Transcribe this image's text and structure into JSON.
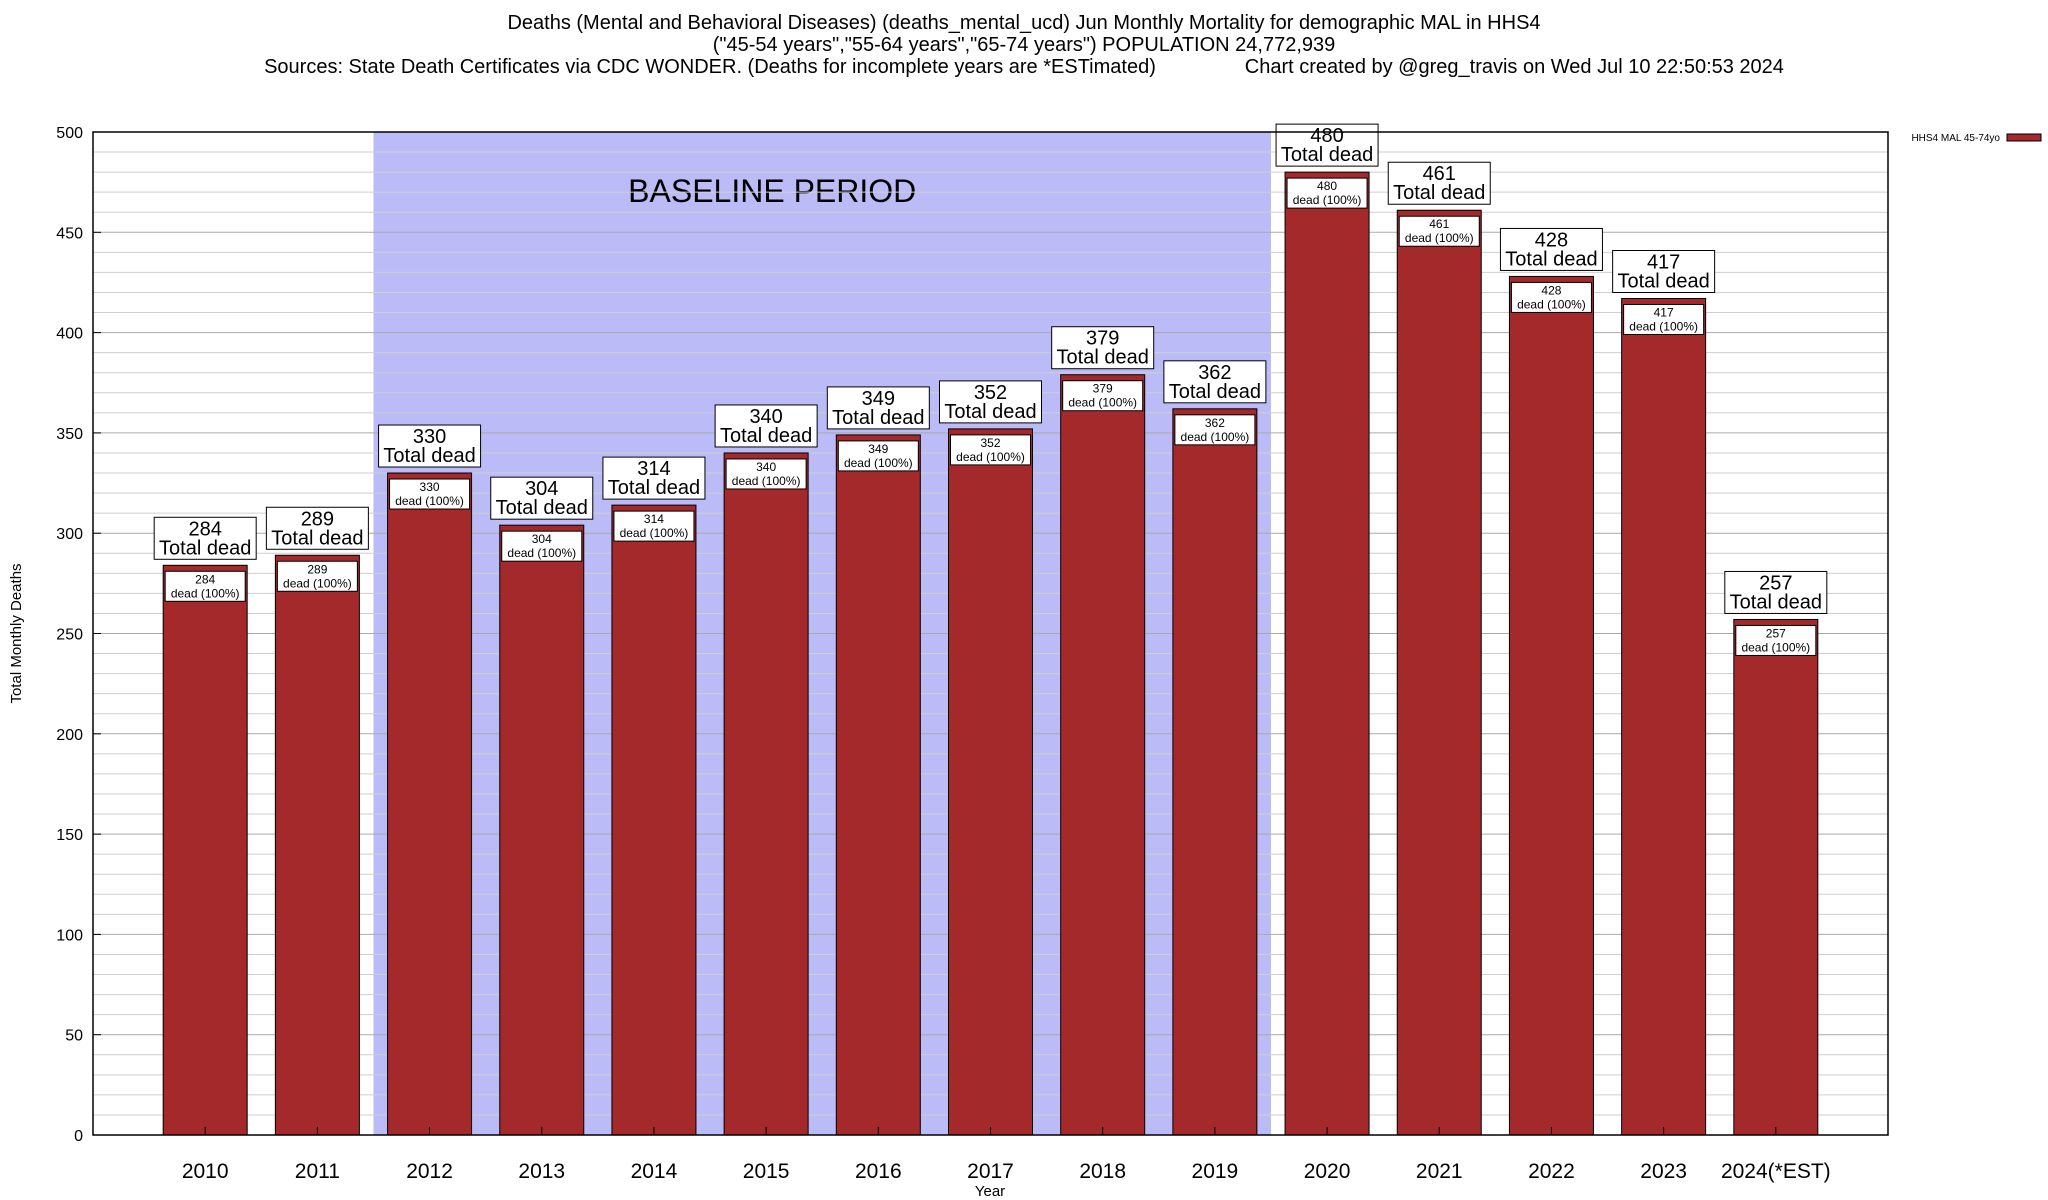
{
  "header": {
    "title_line1": "Deaths (Mental and Behavioral Diseases) (deaths_mental_ucd) Jun Monthly Mortality for demographic MAL in HHS4",
    "title_line2": "(\"45-54 years\",\"55-64 years\",\"65-74 years\") POPULATION 24,772,939",
    "title_line3": "Sources: State Death Certificates via CDC WONDER. (Deaths for incomplete years are *ESTimated)                Chart created by @greg_travis on Wed Jul 10 22:50:53 2024"
  },
  "chart_data": {
    "type": "bar",
    "xlabel": "Year",
    "ylabel": "Total Monthly Deaths",
    "ylim": [
      0,
      500
    ],
    "yticks": [
      0,
      50,
      100,
      150,
      200,
      250,
      300,
      350,
      400,
      450,
      500
    ],
    "grid": true,
    "legend_position": "top-right",
    "categories": [
      "2010",
      "2011",
      "2012",
      "2013",
      "2014",
      "2015",
      "2016",
      "2017",
      "2018",
      "2019",
      "2020",
      "2021",
      "2022",
      "2023",
      "2024(*EST)"
    ],
    "series": [
      {
        "name": "HHS4 MAL 45-74yo",
        "color": "#a3292b",
        "values": [
          284,
          289,
          330,
          304,
          314,
          340,
          349,
          352,
          379,
          362,
          480,
          461,
          428,
          417,
          257
        ]
      }
    ],
    "total_label_suffix": "Total dead",
    "inner_label_suffix": "dead (100%)",
    "baseline": {
      "label": "BASELINE PERIOD",
      "from": "2012",
      "to": "2019",
      "color": "#bbbbf8"
    }
  }
}
